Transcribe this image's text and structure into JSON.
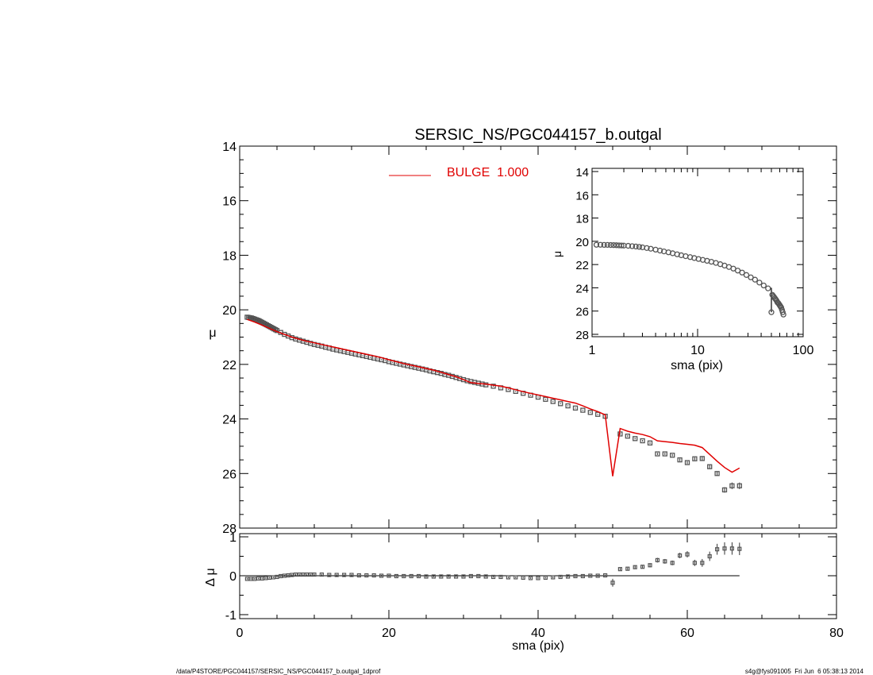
{
  "chart_data": [
    {
      "type": "scatter",
      "panel": "main",
      "title": "SERSIC_NS/PGC044157_b.outgal",
      "xlabel": "",
      "ylabel": "μ",
      "xlim": [
        0,
        80
      ],
      "ylim": [
        28,
        14
      ],
      "y_inverted": true,
      "xticks": [
        0,
        20,
        40,
        60,
        80
      ],
      "yticks": [
        14,
        16,
        18,
        20,
        22,
        24,
        26,
        28
      ],
      "legend": {
        "placement": "top-center",
        "label": "BULGE  1.000",
        "color": "#e00000"
      },
      "series": [
        {
          "name": "",
          "style": "open-squares",
          "color": "#555555",
          "x": [
            1,
            1.2,
            1.4,
            1.6,
            1.8,
            2,
            2.2,
            2.4,
            2.6,
            2.8,
            3,
            3.2,
            3.4,
            3.6,
            3.8,
            4,
            4.2,
            4.4,
            4.6,
            4.8,
            5,
            5.5,
            6,
            6.5,
            7,
            7.5,
            8,
            8.5,
            9,
            9.5,
            10,
            10.5,
            11,
            11.5,
            12,
            12.5,
            13,
            13.5,
            14,
            14.5,
            15,
            15.5,
            16,
            16.5,
            17,
            17.5,
            18,
            18.5,
            19,
            19.5,
            20,
            20.5,
            21,
            21.5,
            22,
            22.5,
            23,
            23.5,
            24,
            24.5,
            25,
            25.5,
            26,
            26.5,
            27,
            27.5,
            28,
            28.5,
            29,
            29.5,
            30,
            30.5,
            31,
            31.5,
            32,
            32.5,
            33,
            34,
            35,
            36,
            37,
            38,
            39,
            40,
            41,
            42,
            43,
            44,
            45,
            46,
            47,
            48,
            49,
            51,
            52,
            53,
            54,
            55,
            56,
            57,
            58,
            59,
            60,
            61,
            62,
            63,
            64,
            65,
            66,
            67
          ],
          "y": [
            20.27,
            20.28,
            20.29,
            20.3,
            20.32,
            20.34,
            20.36,
            20.38,
            20.4,
            20.43,
            20.46,
            20.49,
            20.52,
            20.55,
            20.58,
            20.61,
            20.64,
            20.67,
            20.7,
            20.73,
            20.76,
            20.83,
            20.9,
            20.96,
            21.02,
            21.07,
            21.11,
            21.15,
            21.19,
            21.23,
            21.27,
            21.3,
            21.33,
            21.37,
            21.4,
            21.44,
            21.47,
            21.5,
            21.53,
            21.56,
            21.59,
            21.62,
            21.65,
            21.68,
            21.71,
            21.74,
            21.77,
            21.8,
            21.83,
            21.86,
            21.9,
            21.93,
            21.96,
            21.99,
            22.02,
            22.05,
            22.08,
            22.11,
            22.14,
            22.17,
            22.2,
            22.24,
            22.27,
            22.3,
            22.33,
            22.37,
            22.4,
            22.44,
            22.48,
            22.52,
            22.56,
            22.6,
            22.63,
            22.66,
            22.69,
            22.72,
            22.75,
            22.8,
            22.86,
            22.92,
            22.99,
            23.06,
            23.13,
            23.2,
            23.28,
            23.36,
            23.44,
            23.52,
            23.6,
            23.68,
            23.76,
            23.83,
            23.9,
            24.55,
            24.63,
            24.72,
            24.8,
            24.88,
            25.28,
            25.28,
            25.33,
            25.5,
            25.6,
            25.46,
            25.45,
            25.75,
            26.0,
            26.6,
            26.45,
            26.45
          ],
          "yerr": [
            0.02,
            0.02,
            0.02,
            0.02,
            0.02,
            0.02,
            0.02,
            0.02,
            0.02,
            0.02,
            0.02,
            0.02,
            0.02,
            0.02,
            0.02,
            0.02,
            0.02,
            0.02,
            0.02,
            0.02,
            0.02,
            0.02,
            0.02,
            0.02,
            0.02,
            0.02,
            0.02,
            0.02,
            0.02,
            0.02,
            0.02,
            0.02,
            0.02,
            0.02,
            0.02,
            0.02,
            0.02,
            0.02,
            0.02,
            0.02,
            0.02,
            0.02,
            0.02,
            0.02,
            0.02,
            0.02,
            0.02,
            0.02,
            0.02,
            0.02,
            0.02,
            0.02,
            0.02,
            0.02,
            0.02,
            0.02,
            0.02,
            0.02,
            0.02,
            0.02,
            0.02,
            0.02,
            0.02,
            0.02,
            0.02,
            0.02,
            0.02,
            0.02,
            0.02,
            0.02,
            0.02,
            0.02,
            0.02,
            0.02,
            0.02,
            0.02,
            0.02,
            0.02,
            0.02,
            0.02,
            0.02,
            0.02,
            0.02,
            0.02,
            0.02,
            0.02,
            0.02,
            0.02,
            0.02,
            0.02,
            0.02,
            0.02,
            0.02,
            0.03,
            0.03,
            0.03,
            0.03,
            0.03,
            0.04,
            0.04,
            0.04,
            0.05,
            0.05,
            0.05,
            0.06,
            0.07,
            0.08,
            0.1,
            0.12,
            0.12
          ]
        },
        {
          "name": "BULGE  1.000",
          "style": "line",
          "color": "#e00000",
          "x": [
            1,
            2,
            3,
            4,
            5,
            6,
            7,
            8,
            9,
            10,
            11,
            12,
            13,
            14,
            15,
            16,
            17,
            18,
            19,
            20,
            21,
            22,
            23,
            24,
            25,
            26,
            27,
            28,
            29,
            30,
            31,
            32,
            33,
            34,
            35,
            36,
            37,
            38,
            39,
            40,
            41,
            42,
            43,
            44,
            45,
            46,
            47,
            48,
            49,
            50,
            51,
            52,
            53,
            54,
            55,
            56,
            57,
            58,
            59,
            60,
            61,
            62,
            63,
            64,
            65,
            66,
            67
          ],
          "y": [
            20.35,
            20.45,
            20.56,
            20.68,
            20.8,
            20.9,
            21.0,
            21.08,
            21.15,
            21.21,
            21.27,
            21.33,
            21.39,
            21.45,
            21.51,
            21.57,
            21.63,
            21.69,
            21.75,
            21.83,
            21.9,
            21.97,
            22.03,
            22.09,
            22.15,
            22.21,
            22.29,
            22.37,
            22.45,
            22.56,
            22.67,
            22.7,
            22.72,
            22.76,
            22.8,
            22.86,
            22.93,
            23.0,
            23.06,
            23.12,
            23.18,
            23.24,
            23.3,
            23.36,
            23.42,
            23.52,
            23.63,
            23.73,
            23.85,
            26.1,
            24.35,
            24.45,
            24.52,
            24.57,
            24.65,
            24.8,
            24.83,
            24.86,
            24.9,
            24.93,
            24.96,
            25.05,
            25.3,
            25.55,
            25.78,
            25.95,
            25.8
          ]
        }
      ]
    },
    {
      "type": "scatter",
      "panel": "residual",
      "xlabel": "sma (pix)",
      "ylabel": "Δ μ",
      "xlim": [
        0,
        80
      ],
      "ylim": [
        -1,
        1
      ],
      "xticks": [
        0,
        20,
        40,
        60,
        80
      ],
      "yticks": [
        -1,
        0,
        1
      ],
      "reference_line": 0,
      "series": [
        {
          "name": "",
          "style": "open-squares",
          "color": "#555555",
          "x": [
            1,
            1.5,
            2,
            2.5,
            3,
            3.5,
            4,
            4.5,
            5,
            5.5,
            6,
            6.5,
            7,
            7.5,
            8,
            8.5,
            9,
            9.5,
            10,
            11,
            12,
            13,
            14,
            15,
            16,
            17,
            18,
            19,
            20,
            21,
            22,
            23,
            24,
            25,
            26,
            27,
            28,
            29,
            30,
            31,
            32,
            33,
            34,
            35,
            36,
            37,
            38,
            39,
            40,
            41,
            42,
            43,
            44,
            45,
            46,
            47,
            48,
            49,
            50,
            51,
            52,
            53,
            54,
            55,
            56,
            57,
            58,
            59,
            60,
            61,
            62,
            63,
            64,
            65,
            66,
            67
          ],
          "y": [
            -0.08,
            -0.08,
            -0.08,
            -0.07,
            -0.07,
            -0.06,
            -0.05,
            -0.04,
            -0.03,
            -0.01,
            0.0,
            0.01,
            0.02,
            0.03,
            0.03,
            0.03,
            0.03,
            0.03,
            0.03,
            0.03,
            0.02,
            0.02,
            0.02,
            0.02,
            0.01,
            0.01,
            0.01,
            0.0,
            0.0,
            -0.01,
            -0.01,
            -0.01,
            -0.01,
            -0.02,
            -0.02,
            -0.02,
            -0.02,
            -0.02,
            -0.02,
            -0.01,
            -0.01,
            -0.02,
            -0.03,
            -0.03,
            -0.04,
            -0.04,
            -0.05,
            -0.06,
            -0.06,
            -0.05,
            -0.04,
            -0.03,
            -0.02,
            -0.01,
            -0.01,
            0.0,
            0.0,
            0.01,
            -0.18,
            0.17,
            0.18,
            0.22,
            0.23,
            0.27,
            0.4,
            0.37,
            0.33,
            0.52,
            0.55,
            0.33,
            0.33,
            0.5,
            0.68,
            0.7,
            0.7,
            0.69
          ],
          "yerr": [
            0.02,
            0.02,
            0.02,
            0.02,
            0.02,
            0.02,
            0.02,
            0.02,
            0.02,
            0.02,
            0.02,
            0.02,
            0.02,
            0.02,
            0.02,
            0.02,
            0.02,
            0.02,
            0.02,
            0.02,
            0.02,
            0.02,
            0.02,
            0.02,
            0.02,
            0.02,
            0.02,
            0.02,
            0.02,
            0.02,
            0.02,
            0.02,
            0.02,
            0.02,
            0.02,
            0.02,
            0.02,
            0.02,
            0.02,
            0.02,
            0.02,
            0.02,
            0.02,
            0.02,
            0.02,
            0.02,
            0.02,
            0.02,
            0.02,
            0.02,
            0.02,
            0.02,
            0.02,
            0.02,
            0.02,
            0.02,
            0.02,
            0.02,
            0.1,
            0.03,
            0.03,
            0.04,
            0.04,
            0.05,
            0.06,
            0.06,
            0.06,
            0.07,
            0.08,
            0.08,
            0.1,
            0.12,
            0.14,
            0.16,
            0.16,
            0.16
          ]
        }
      ]
    },
    {
      "type": "scatter",
      "panel": "inset",
      "xlabel": "sma (pix)",
      "ylabel": "μ",
      "xscale": "log",
      "xlim": [
        1,
        100
      ],
      "ylim": [
        28,
        14
      ],
      "y_inverted": true,
      "xticks": [
        1,
        10,
        100
      ],
      "yticks": [
        14,
        16,
        18,
        20,
        22,
        24,
        26,
        28
      ],
      "series": [
        {
          "name": "",
          "style": "open-circles",
          "color": "#555555",
          "x": [
            1.1,
            1.2,
            1.3,
            1.4,
            1.5,
            1.6,
            1.7,
            1.8,
            1.9,
            2,
            2.2,
            2.4,
            2.6,
            2.8,
            3,
            3.3,
            3.6,
            4,
            4.4,
            4.8,
            5.3,
            5.8,
            6.4,
            7,
            7.7,
            8.5,
            9.3,
            10.2,
            11.2,
            12.3,
            13.5,
            14.9,
            16.4,
            18,
            19.8,
            21.8,
            24,
            26.4,
            29,
            31.9,
            35,
            38.5,
            42.3,
            46.5,
            50,
            51,
            52,
            53,
            54,
            55,
            56,
            57,
            58,
            59,
            60,
            61,
            62,
            63,
            64,
            65
          ],
          "y": [
            20.3,
            20.3,
            20.31,
            20.31,
            20.32,
            20.33,
            20.34,
            20.35,
            20.36,
            20.37,
            20.39,
            20.42,
            20.45,
            20.48,
            20.52,
            20.58,
            20.64,
            20.72,
            20.8,
            20.87,
            20.95,
            21.03,
            21.12,
            21.2,
            21.28,
            21.36,
            21.44,
            21.52,
            21.6,
            21.68,
            21.76,
            21.86,
            21.97,
            22.09,
            22.21,
            22.35,
            22.52,
            22.69,
            22.9,
            23.1,
            23.3,
            23.55,
            23.8,
            24.05,
            26.1,
            24.6,
            24.7,
            24.8,
            24.9,
            25.0,
            25.1,
            25.25,
            25.3,
            25.4,
            25.5,
            25.6,
            25.7,
            25.9,
            26.1,
            26.3
          ]
        }
      ]
    }
  ],
  "footer": {
    "left": "/data/P4STORE/PGC044157/SERSIC_NS/PGC044157_b.outgal_1dprof",
    "right": "s4g@fys091005  Fri Jun  6 05:38:13 2014"
  }
}
